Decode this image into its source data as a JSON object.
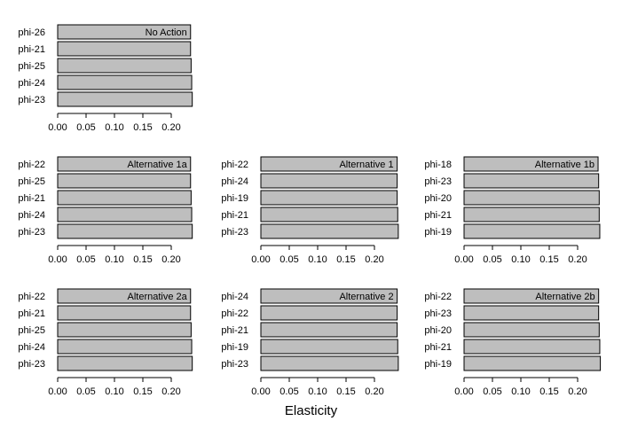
{
  "chart_data": [
    {
      "type": "bar",
      "orientation": "horizontal",
      "title": "No Action",
      "categories": [
        "phi-26",
        "phi-21",
        "phi-25",
        "phi-24",
        "phi-23"
      ],
      "values": [
        0.234,
        0.234,
        0.235,
        0.236,
        0.237
      ],
      "xlim": [
        0,
        0.24
      ],
      "xticks": [
        "0.00",
        "0.05",
        "0.10",
        "0.15",
        "0.20"
      ]
    },
    {
      "type": "bar",
      "orientation": "horizontal",
      "title": "Alternative 1a",
      "categories": [
        "phi-22",
        "phi-25",
        "phi-21",
        "phi-24",
        "phi-23"
      ],
      "values": [
        0.234,
        0.234,
        0.235,
        0.236,
        0.237
      ],
      "xlim": [
        0,
        0.24
      ],
      "xticks": [
        "0.00",
        "0.05",
        "0.10",
        "0.15",
        "0.20"
      ]
    },
    {
      "type": "bar",
      "orientation": "horizontal",
      "title": "Alternative 1",
      "categories": [
        "phi-22",
        "phi-24",
        "phi-19",
        "phi-21",
        "phi-23"
      ],
      "values": [
        0.24,
        0.24,
        0.24,
        0.241,
        0.242
      ],
      "xlim": [
        0,
        0.24
      ],
      "xticks": [
        "0.00",
        "0.05",
        "0.10",
        "0.15",
        "0.20"
      ]
    },
    {
      "type": "bar",
      "orientation": "horizontal",
      "title": "Alternative 1b",
      "categories": [
        "phi-18",
        "phi-23",
        "phi-20",
        "phi-21",
        "phi-19"
      ],
      "values": [
        0.236,
        0.237,
        0.238,
        0.238,
        0.239
      ],
      "xlim": [
        0,
        0.24
      ],
      "xticks": [
        "0.00",
        "0.05",
        "0.10",
        "0.15",
        "0.20"
      ]
    },
    {
      "type": "bar",
      "orientation": "horizontal",
      "title": "Alternative 2a",
      "categories": [
        "phi-22",
        "phi-21",
        "phi-25",
        "phi-24",
        "phi-23"
      ],
      "values": [
        0.234,
        0.234,
        0.235,
        0.236,
        0.237
      ],
      "xlim": [
        0,
        0.24
      ],
      "xticks": [
        "0.00",
        "0.05",
        "0.10",
        "0.15",
        "0.20"
      ]
    },
    {
      "type": "bar",
      "orientation": "horizontal",
      "title": "Alternative 2",
      "categories": [
        "phi-24",
        "phi-22",
        "phi-21",
        "phi-19",
        "phi-23"
      ],
      "values": [
        0.24,
        0.24,
        0.24,
        0.241,
        0.242
      ],
      "xlim": [
        0,
        0.24
      ],
      "xticks": [
        "0.00",
        "0.05",
        "0.10",
        "0.15",
        "0.20"
      ]
    },
    {
      "type": "bar",
      "orientation": "horizontal",
      "title": "Alternative 2b",
      "categories": [
        "phi-22",
        "phi-23",
        "phi-20",
        "phi-21",
        "phi-19"
      ],
      "values": [
        0.237,
        0.237,
        0.238,
        0.239,
        0.24
      ],
      "xlim": [
        0,
        0.24
      ],
      "xticks": [
        "0.00",
        "0.05",
        "0.10",
        "0.15",
        "0.20"
      ]
    }
  ],
  "xlabel": "Elasticity",
  "colors": {
    "bar_fill": "#bebebe",
    "bar_stroke": "#000000"
  }
}
